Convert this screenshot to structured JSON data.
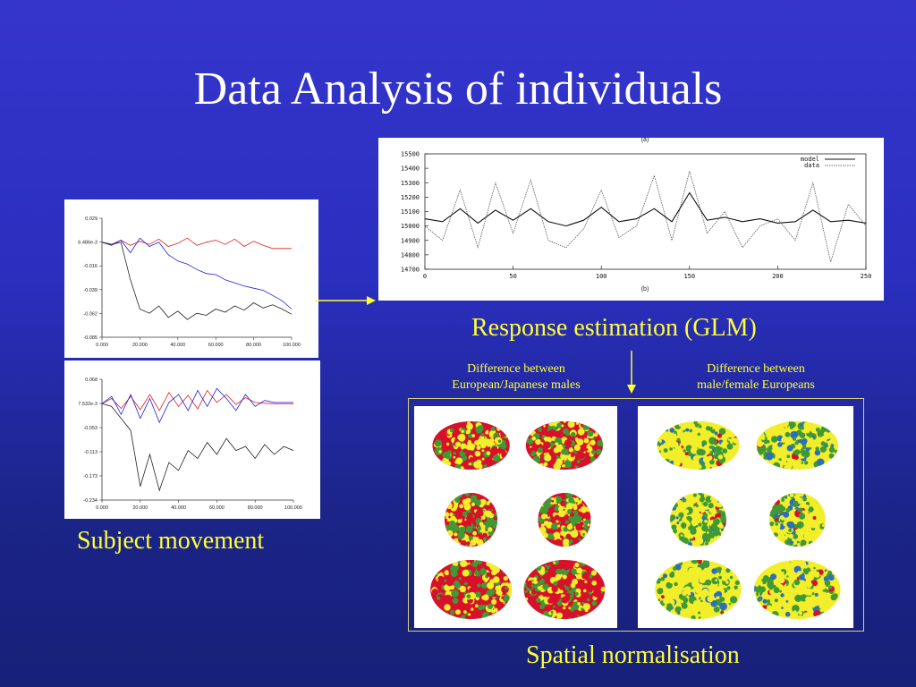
{
  "slide": {
    "title": "Data Analysis of individuals",
    "captions": {
      "subject_movement": "Subject movement",
      "response_estimation": "Response estimation (GLM)",
      "spatial_normalisation": "Spatial normalisation",
      "diff_left": [
        "Difference between",
        "European/Japanese males"
      ],
      "diff_right": [
        "Difference between",
        "male/female Europeans"
      ]
    },
    "colors": {
      "caption": "#ffff33",
      "title": "#ffffff",
      "brain_red": "#d8102a",
      "brain_yellow": "#f2ee2a",
      "brain_green": "#3f9a35",
      "brain_blue": "#2c6fbf"
    },
    "brain_panel_left": {
      "dominant": [
        "red",
        "yellow",
        "green"
      ]
    },
    "brain_panel_right": {
      "dominant": [
        "yellow",
        "green",
        "blue"
      ]
    }
  },
  "chart_data": [
    {
      "type": "line",
      "y_tick_labels": [
        "0.029",
        "6.486e-3",
        "-0.016",
        "-0.039",
        "-0.062",
        "-0.085"
      ],
      "x_tick_labels": [
        "0.000",
        "20.000",
        "40.000",
        "60.000",
        "80.000",
        "100.000"
      ],
      "ylim": [
        -0.085,
        0.029
      ],
      "xlim": [
        0,
        100
      ],
      "grid": false,
      "series": [
        {
          "color": "#e02020",
          "x": [
            0,
            5,
            10,
            15,
            20,
            25,
            30,
            35,
            40,
            45,
            50,
            55,
            60,
            65,
            70,
            75,
            80,
            85,
            90,
            95,
            100
          ],
          "y": [
            0.006,
            0.004,
            0.008,
            0.003,
            0.007,
            0.004,
            0.009,
            0.002,
            0.005,
            0.01,
            0.003,
            0.006,
            0.008,
            0.004,
            0.009,
            0.002,
            0.007,
            0.003,
            0.0,
            0.0,
            0.0
          ]
        },
        {
          "color": "#2020e0",
          "x": [
            0,
            5,
            10,
            15,
            20,
            25,
            30,
            35,
            40,
            45,
            50,
            55,
            60,
            65,
            70,
            75,
            80,
            85,
            90,
            95,
            100
          ],
          "y": [
            0.006,
            0.003,
            0.008,
            -0.004,
            0.01,
            0.002,
            0.006,
            -0.006,
            -0.012,
            -0.015,
            -0.02,
            -0.024,
            -0.025,
            -0.03,
            -0.033,
            -0.036,
            -0.038,
            -0.04,
            -0.045,
            -0.05,
            -0.058
          ]
        },
        {
          "color": "#202020",
          "x": [
            0,
            5,
            10,
            15,
            20,
            25,
            30,
            35,
            40,
            45,
            50,
            55,
            60,
            65,
            70,
            75,
            80,
            85,
            90,
            95,
            100
          ],
          "y": [
            0.006,
            0.004,
            0.006,
            -0.03,
            -0.058,
            -0.062,
            -0.055,
            -0.066,
            -0.06,
            -0.068,
            -0.062,
            -0.064,
            -0.058,
            -0.061,
            -0.055,
            -0.059,
            -0.052,
            -0.057,
            -0.054,
            -0.058,
            -0.063
          ]
        }
      ]
    },
    {
      "type": "line",
      "y_tick_labels": [
        "0.068",
        "7.532e-3",
        "-0.053",
        "-0.113",
        "-0.173",
        "-0.234"
      ],
      "x_tick_labels": [
        "0.000",
        "20.000",
        "40.000",
        "60.000",
        "80.000",
        "100.000"
      ],
      "ylim": [
        -0.234,
        0.068
      ],
      "xlim": [
        0,
        100
      ],
      "grid": false,
      "series": [
        {
          "color": "#e02020",
          "x": [
            0,
            5,
            10,
            15,
            20,
            25,
            30,
            35,
            40,
            45,
            50,
            55,
            60,
            65,
            70,
            75,
            80,
            85,
            90,
            95,
            100
          ],
          "y": [
            0.007,
            0.02,
            -0.005,
            0.025,
            -0.008,
            0.03,
            -0.01,
            0.035,
            0.0,
            0.028,
            -0.006,
            0.04,
            0.01,
            0.03,
            0.005,
            0.022,
            0.01,
            0.008,
            0.007,
            0.007,
            0.007
          ]
        },
        {
          "color": "#2020e0",
          "x": [
            0,
            5,
            10,
            15,
            20,
            25,
            30,
            35,
            40,
            45,
            50,
            55,
            60,
            65,
            70,
            75,
            80,
            85,
            90,
            95,
            100
          ],
          "y": [
            0.007,
            0.025,
            -0.02,
            0.03,
            -0.03,
            0.02,
            -0.04,
            0.01,
            0.03,
            -0.01,
            0.04,
            0.0,
            0.045,
            0.02,
            -0.01,
            0.03,
            0.0,
            0.015,
            0.01,
            0.01,
            0.01
          ]
        },
        {
          "color": "#202020",
          "x": [
            0,
            5,
            10,
            15,
            20,
            25,
            30,
            35,
            40,
            45,
            50,
            55,
            60,
            65,
            70,
            75,
            80,
            85,
            90,
            95,
            100
          ],
          "y": [
            0.007,
            0.0,
            -0.03,
            -0.06,
            -0.2,
            -0.12,
            -0.21,
            -0.14,
            -0.16,
            -0.11,
            -0.13,
            -0.09,
            -0.12,
            -0.08,
            -0.11,
            -0.1,
            -0.13,
            -0.095,
            -0.12,
            -0.1,
            -0.11
          ]
        }
      ]
    },
    {
      "type": "line",
      "title": "(a)",
      "xlabel": "(b)",
      "y_tick_labels": [
        "15500",
        "15400",
        "15300",
        "15200",
        "15100",
        "15000",
        "14900",
        "14800",
        "14700"
      ],
      "x_tick_labels": [
        "0",
        "50",
        "100",
        "150",
        "200",
        "250"
      ],
      "ylim": [
        14700,
        15500
      ],
      "xlim": [
        0,
        250
      ],
      "legend": "top-right",
      "grid": false,
      "series": [
        {
          "name": "model",
          "color": "#111111",
          "x": [
            0,
            10,
            20,
            30,
            40,
            50,
            60,
            70,
            80,
            90,
            100,
            110,
            120,
            130,
            140,
            150,
            160,
            170,
            180,
            190,
            200,
            210,
            220,
            230,
            240,
            250
          ],
          "y": [
            15050,
            15030,
            15120,
            15020,
            15110,
            15040,
            15120,
            15030,
            15000,
            15040,
            15130,
            15030,
            15050,
            15120,
            15030,
            15230,
            15040,
            15060,
            15030,
            15050,
            15020,
            15030,
            15110,
            15030,
            15040,
            15020
          ]
        },
        {
          "name": "data",
          "color": "#444444",
          "x": [
            0,
            10,
            20,
            30,
            40,
            50,
            60,
            70,
            80,
            90,
            100,
            110,
            120,
            130,
            140,
            150,
            160,
            170,
            180,
            190,
            200,
            210,
            220,
            230,
            240,
            250
          ],
          "y": [
            15000,
            14900,
            15250,
            14850,
            15300,
            14950,
            15320,
            14900,
            14850,
            14980,
            15250,
            14920,
            15000,
            15350,
            14900,
            15380,
            14950,
            15100,
            14850,
            15000,
            15050,
            14900,
            15300,
            14750,
            15150,
            15000
          ]
        }
      ]
    }
  ]
}
